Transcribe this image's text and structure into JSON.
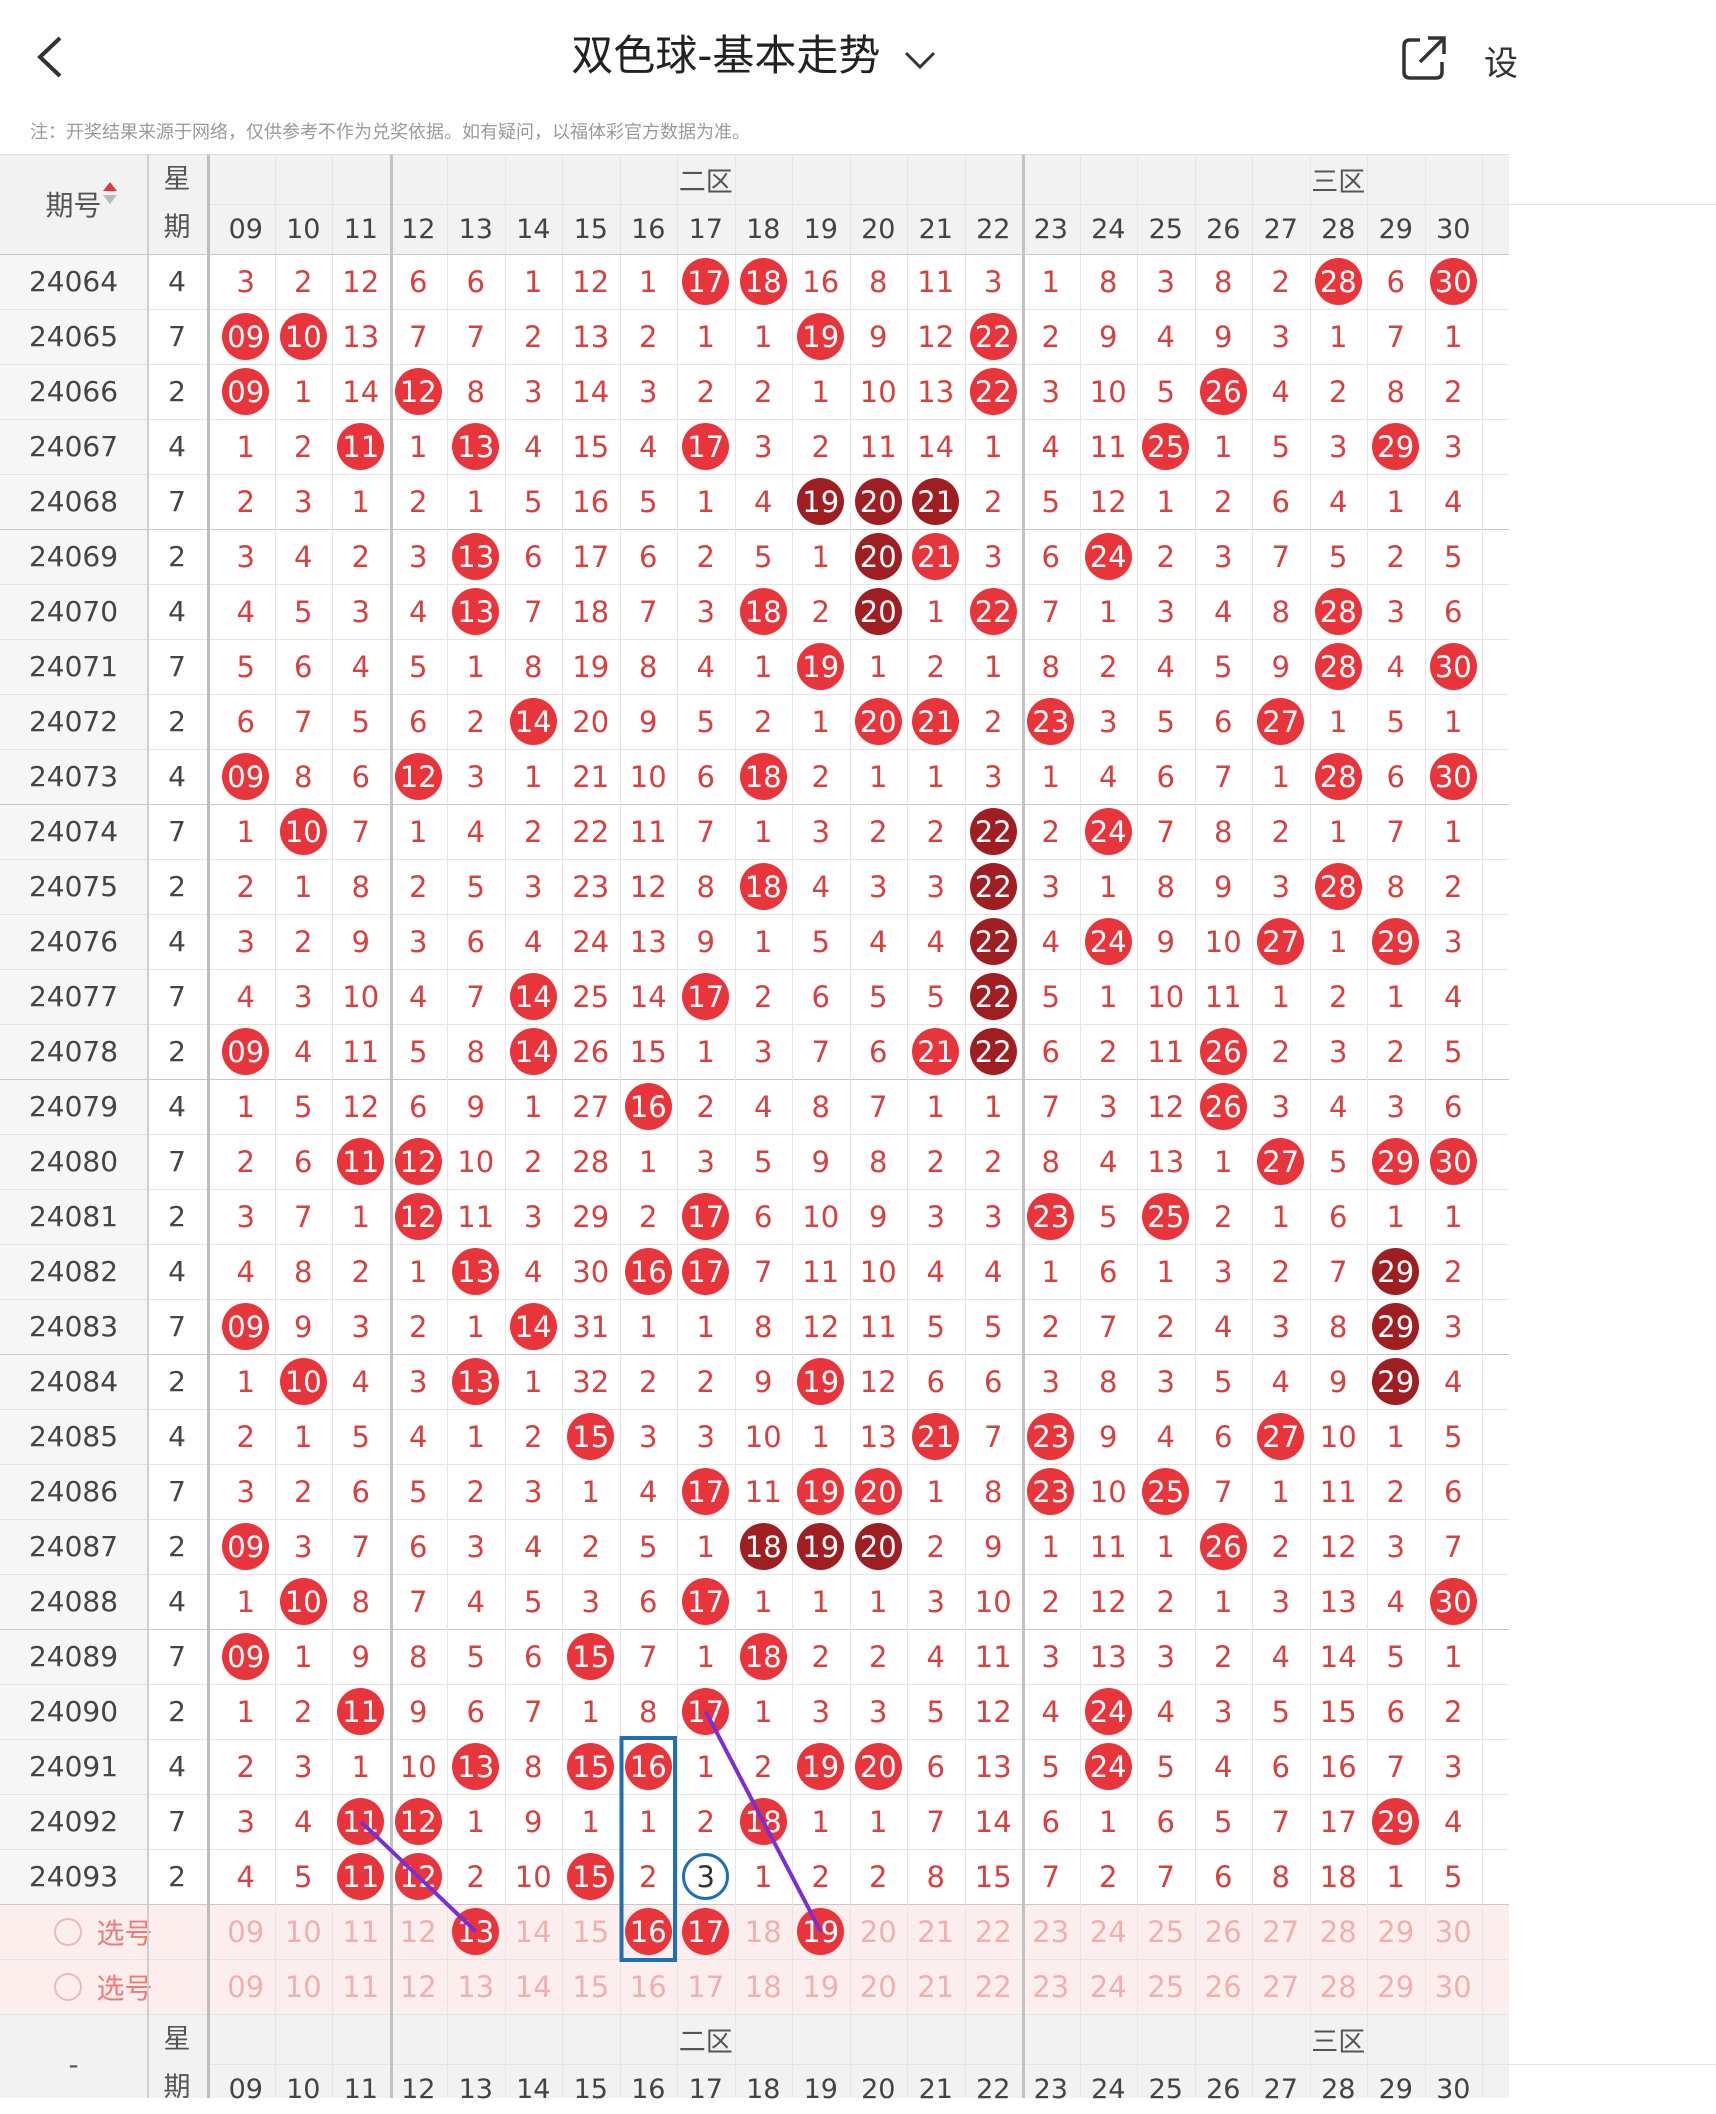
{
  "header": {
    "title": "双色球-基本走势",
    "side": "设"
  },
  "note": "注：开奖结果来源于网络，仅供参考不作为兑奖依据。如有疑问，以福体彩官方数据为准。",
  "table": {
    "col_issue": "期号",
    "col_week": "星期",
    "zones": [
      "二区",
      "三区"
    ],
    "columns": [
      "09",
      "10",
      "11",
      "12",
      "13",
      "14",
      "15",
      "16",
      "17",
      "18",
      "19",
      "20",
      "21",
      "22",
      "23",
      "24",
      "25",
      "26",
      "27",
      "28",
      "29",
      "30"
    ],
    "rows": [
      {
        "issue": "24064",
        "week": "4",
        "cells": [
          "3",
          "2",
          "12",
          "6",
          "6",
          "1",
          "12",
          "1",
          "17",
          "18",
          "16",
          "8",
          "11",
          "3",
          "1",
          "8",
          "3",
          "8",
          "2",
          "28",
          "6",
          "30"
        ],
        "kind": "........rr.........r.r"
      },
      {
        "issue": "24065",
        "week": "7",
        "cells": [
          "09",
          "10",
          "13",
          "7",
          "7",
          "2",
          "13",
          "2",
          "1",
          "1",
          "19",
          "9",
          "12",
          "22",
          "2",
          "9",
          "4",
          "9",
          "3",
          "1",
          "7",
          "1"
        ],
        "kind": "rr........r..r........"
      },
      {
        "issue": "24066",
        "week": "2",
        "cells": [
          "09",
          "1",
          "14",
          "12",
          "8",
          "3",
          "14",
          "3",
          "2",
          "2",
          "1",
          "10",
          "13",
          "22",
          "3",
          "10",
          "5",
          "26",
          "4",
          "2",
          "8",
          "2"
        ],
        "kind": "r..r.........r...r...."
      },
      {
        "issue": "24067",
        "week": "4",
        "cells": [
          "1",
          "2",
          "11",
          "1",
          "13",
          "4",
          "15",
          "4",
          "17",
          "3",
          "2",
          "11",
          "14",
          "1",
          "4",
          "11",
          "25",
          "1",
          "5",
          "3",
          "29",
          "3"
        ],
        "kind": "..r.r...r.......r...r."
      },
      {
        "issue": "24068",
        "week": "7",
        "cells": [
          "2",
          "3",
          "1",
          "2",
          "1",
          "5",
          "16",
          "5",
          "1",
          "4",
          "19",
          "20",
          "21",
          "2",
          "5",
          "12",
          "1",
          "2",
          "6",
          "4",
          "1",
          "4"
        ],
        "kind": "..........ddd........."
      },
      {
        "issue": "24069",
        "week": "2",
        "cells": [
          "3",
          "4",
          "2",
          "3",
          "13",
          "6",
          "17",
          "6",
          "2",
          "5",
          "1",
          "20",
          "21",
          "3",
          "6",
          "24",
          "2",
          "3",
          "7",
          "5",
          "2",
          "5"
        ],
        "kind": "....r......dr..r......"
      },
      {
        "issue": "24070",
        "week": "4",
        "cells": [
          "4",
          "5",
          "3",
          "4",
          "13",
          "7",
          "18",
          "7",
          "3",
          "18",
          "2",
          "20",
          "1",
          "22",
          "7",
          "1",
          "3",
          "4",
          "8",
          "28",
          "3",
          "6"
        ],
        "kind": "....r....r.d.r.....r.."
      },
      {
        "issue": "24071",
        "week": "7",
        "cells": [
          "5",
          "6",
          "4",
          "5",
          "1",
          "8",
          "19",
          "8",
          "4",
          "1",
          "19",
          "1",
          "2",
          "1",
          "8",
          "2",
          "4",
          "5",
          "9",
          "28",
          "4",
          "30"
        ],
        "kind": "..........r........r.r"
      },
      {
        "issue": "24072",
        "week": "2",
        "cells": [
          "6",
          "7",
          "5",
          "6",
          "2",
          "14",
          "20",
          "9",
          "5",
          "2",
          "1",
          "20",
          "21",
          "2",
          "23",
          "3",
          "5",
          "6",
          "27",
          "1",
          "5",
          "1"
        ],
        "kind": ".....r.....rr.r...r..."
      },
      {
        "issue": "24073",
        "week": "4",
        "cells": [
          "09",
          "8",
          "6",
          "12",
          "3",
          "1",
          "21",
          "10",
          "6",
          "18",
          "2",
          "1",
          "1",
          "3",
          "1",
          "4",
          "6",
          "7",
          "1",
          "28",
          "6",
          "30"
        ],
        "kind": "r..r.....r.........r.r"
      },
      {
        "issue": "24074",
        "week": "7",
        "cells": [
          "1",
          "10",
          "7",
          "1",
          "4",
          "2",
          "22",
          "11",
          "7",
          "1",
          "3",
          "2",
          "2",
          "22",
          "2",
          "24",
          "7",
          "8",
          "2",
          "1",
          "7",
          "1"
        ],
        "kind": ".r...........d.r......"
      },
      {
        "issue": "24075",
        "week": "2",
        "cells": [
          "2",
          "1",
          "8",
          "2",
          "5",
          "3",
          "23",
          "12",
          "8",
          "18",
          "4",
          "3",
          "3",
          "22",
          "3",
          "1",
          "8",
          "9",
          "3",
          "28",
          "8",
          "2"
        ],
        "kind": ".........r...d.....r.."
      },
      {
        "issue": "24076",
        "week": "4",
        "cells": [
          "3",
          "2",
          "9",
          "3",
          "6",
          "4",
          "24",
          "13",
          "9",
          "1",
          "5",
          "4",
          "4",
          "22",
          "4",
          "24",
          "9",
          "10",
          "27",
          "1",
          "29",
          "3"
        ],
        "kind": ".............d.r..r.r."
      },
      {
        "issue": "24077",
        "week": "7",
        "cells": [
          "4",
          "3",
          "10",
          "4",
          "7",
          "14",
          "25",
          "14",
          "17",
          "2",
          "6",
          "5",
          "5",
          "22",
          "5",
          "1",
          "10",
          "11",
          "1",
          "2",
          "1",
          "4"
        ],
        "kind": ".....r..r....d........"
      },
      {
        "issue": "24078",
        "week": "2",
        "cells": [
          "09",
          "4",
          "11",
          "5",
          "8",
          "14",
          "26",
          "15",
          "1",
          "3",
          "7",
          "6",
          "21",
          "22",
          "6",
          "2",
          "11",
          "26",
          "2",
          "3",
          "2",
          "5"
        ],
        "kind": "r....r......rd...r...."
      },
      {
        "issue": "24079",
        "week": "4",
        "cells": [
          "1",
          "5",
          "12",
          "6",
          "9",
          "1",
          "27",
          "16",
          "2",
          "4",
          "8",
          "7",
          "1",
          "1",
          "7",
          "3",
          "12",
          "26",
          "3",
          "4",
          "3",
          "6"
        ],
        "kind": ".......r.........r...."
      },
      {
        "issue": "24080",
        "week": "7",
        "cells": [
          "2",
          "6",
          "11",
          "12",
          "10",
          "2",
          "28",
          "1",
          "3",
          "5",
          "9",
          "8",
          "2",
          "2",
          "8",
          "4",
          "13",
          "1",
          "27",
          "5",
          "29",
          "30"
        ],
        "kind": "..rr..............r.rr"
      },
      {
        "issue": "24081",
        "week": "2",
        "cells": [
          "3",
          "7",
          "1",
          "12",
          "11",
          "3",
          "29",
          "2",
          "17",
          "6",
          "10",
          "9",
          "3",
          "3",
          "23",
          "5",
          "25",
          "2",
          "1",
          "6",
          "1",
          "1"
        ],
        "kind": "...r....r.....r.r....."
      },
      {
        "issue": "24082",
        "week": "4",
        "cells": [
          "4",
          "8",
          "2",
          "1",
          "13",
          "4",
          "30",
          "16",
          "17",
          "7",
          "11",
          "10",
          "4",
          "4",
          "1",
          "6",
          "1",
          "3",
          "2",
          "7",
          "29",
          "2"
        ],
        "kind": "....r..rr...........d."
      },
      {
        "issue": "24083",
        "week": "7",
        "cells": [
          "09",
          "9",
          "3",
          "2",
          "1",
          "14",
          "31",
          "1",
          "1",
          "8",
          "12",
          "11",
          "5",
          "5",
          "2",
          "7",
          "2",
          "4",
          "3",
          "8",
          "29",
          "3"
        ],
        "kind": "r....r..............d."
      },
      {
        "issue": "24084",
        "week": "2",
        "cells": [
          "1",
          "10",
          "4",
          "3",
          "13",
          "1",
          "32",
          "2",
          "2",
          "9",
          "19",
          "12",
          "6",
          "6",
          "3",
          "8",
          "3",
          "5",
          "4",
          "9",
          "29",
          "4"
        ],
        "kind": ".r..r.....r.........d."
      },
      {
        "issue": "24085",
        "week": "4",
        "cells": [
          "2",
          "1",
          "5",
          "4",
          "1",
          "2",
          "15",
          "3",
          "3",
          "10",
          "1",
          "13",
          "21",
          "7",
          "23",
          "9",
          "4",
          "6",
          "27",
          "10",
          "1",
          "5"
        ],
        "kind": "......r.....r.r...r..."
      },
      {
        "issue": "24086",
        "week": "7",
        "cells": [
          "3",
          "2",
          "6",
          "5",
          "2",
          "3",
          "1",
          "4",
          "17",
          "11",
          "19",
          "20",
          "1",
          "8",
          "23",
          "10",
          "25",
          "7",
          "1",
          "11",
          "2",
          "6"
        ],
        "kind": "........r.rr..r.r....."
      },
      {
        "issue": "24087",
        "week": "2",
        "cells": [
          "09",
          "3",
          "7",
          "6",
          "3",
          "4",
          "2",
          "5",
          "1",
          "18",
          "19",
          "20",
          "2",
          "9",
          "1",
          "11",
          "1",
          "26",
          "2",
          "12",
          "3",
          "7"
        ],
        "kind": "r........ddd.....r...."
      },
      {
        "issue": "24088",
        "week": "4",
        "cells": [
          "1",
          "10",
          "8",
          "7",
          "4",
          "5",
          "3",
          "6",
          "17",
          "1",
          "1",
          "1",
          "3",
          "10",
          "2",
          "12",
          "2",
          "1",
          "3",
          "13",
          "4",
          "30"
        ],
        "kind": ".r......r............r"
      },
      {
        "issue": "24089",
        "week": "7",
        "cells": [
          "09",
          "1",
          "9",
          "8",
          "5",
          "6",
          "15",
          "7",
          "1",
          "18",
          "2",
          "2",
          "4",
          "11",
          "3",
          "13",
          "3",
          "2",
          "4",
          "14",
          "5",
          "1"
        ],
        "kind": "r.....r..r............"
      },
      {
        "issue": "24090",
        "week": "2",
        "cells": [
          "1",
          "2",
          "11",
          "9",
          "6",
          "7",
          "1",
          "8",
          "17",
          "1",
          "3",
          "3",
          "5",
          "12",
          "4",
          "24",
          "4",
          "3",
          "5",
          "15",
          "6",
          "2"
        ],
        "kind": "..r.....r......r......"
      },
      {
        "issue": "24091",
        "week": "4",
        "cells": [
          "2",
          "3",
          "1",
          "10",
          "13",
          "8",
          "15",
          "16",
          "1",
          "2",
          "19",
          "20",
          "6",
          "13",
          "5",
          "24",
          "5",
          "4",
          "6",
          "16",
          "7",
          "3"
        ],
        "kind": "....r.rr..rr...r......"
      },
      {
        "issue": "24092",
        "week": "7",
        "cells": [
          "3",
          "4",
          "11",
          "12",
          "1",
          "9",
          "1",
          "1",
          "2",
          "18",
          "1",
          "1",
          "7",
          "14",
          "6",
          "1",
          "6",
          "5",
          "7",
          "17",
          "29",
          "4"
        ],
        "kind": "..rr.....r..........r."
      },
      {
        "issue": "24093",
        "week": "2",
        "cells": [
          "4",
          "5",
          "11",
          "12",
          "2",
          "10",
          "15",
          "2",
          "3",
          "1",
          "2",
          "2",
          "8",
          "15",
          "7",
          "2",
          "7",
          "6",
          "8",
          "18",
          "1",
          "5"
        ],
        "kind": "..rr..r.o............."
      }
    ],
    "pick_rows": [
      {
        "label": "选号",
        "cells": [
          "09",
          "10",
          "11",
          "12",
          "13",
          "14",
          "15",
          "16",
          "17",
          "18",
          "19",
          "20",
          "21",
          "22",
          "23",
          "24",
          "25",
          "26",
          "27",
          "28",
          "29",
          "30"
        ],
        "kind": "....r..rr.r..........."
      },
      {
        "label": "选号",
        "cells": [
          "09",
          "10",
          "11",
          "12",
          "13",
          "14",
          "15",
          "16",
          "17",
          "18",
          "19",
          "20",
          "21",
          "22",
          "23",
          "24",
          "25",
          "26",
          "27",
          "28",
          "29",
          "30"
        ],
        "kind": "......................"
      }
    ],
    "footer": {
      "issue": "-",
      "week": "星期",
      "zones": [
        "二区",
        "三区"
      ],
      "columns": [
        "09",
        "10",
        "11",
        "12",
        "13",
        "14",
        "15",
        "16",
        "17",
        "18",
        "19",
        "20",
        "21",
        "22",
        "23",
        "24",
        "25",
        "26",
        "27",
        "28",
        "29",
        "30"
      ]
    }
  }
}
